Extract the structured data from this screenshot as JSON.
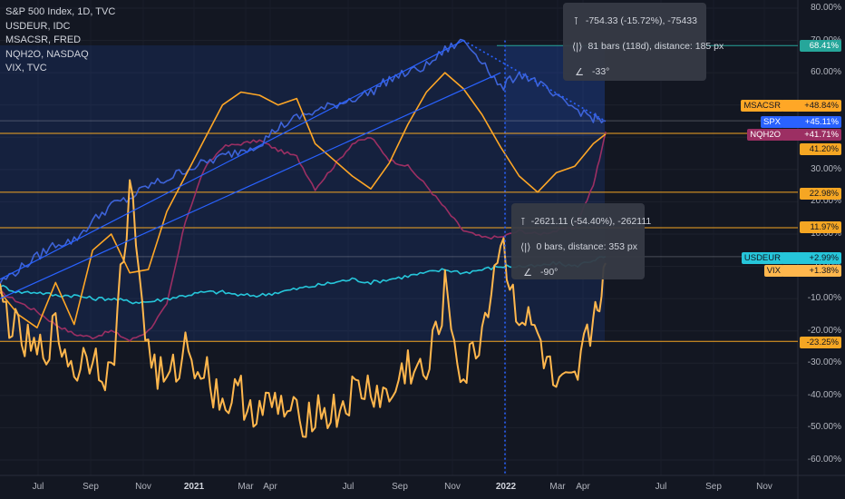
{
  "legend": [
    "S&P 500 Index, 1D, TVC",
    "USDEUR, IDC",
    "MSACSR, FRED",
    "NQH2O, NASDAQ",
    "VIX, TVC"
  ],
  "tooltip1": {
    "row1": "-754.33 (-15.72%), -75433",
    "row2": "81 bars (118d), distance: 185 px",
    "row3": "-33°"
  },
  "tooltip2": {
    "row1": "-2621.11 (-54.40%), -262111",
    "row2": "0 bars, distance: 353 px",
    "row3": "-90°"
  },
  "icons": {
    "range": "range-icon",
    "bars": "bars-icon",
    "angle": "angle-icon"
  },
  "colors": {
    "background": "#131722",
    "spx": "#3d63d8",
    "usdeur": "#26c6da",
    "msacsr": "#ffa726",
    "nqh2o": "#9c2f63",
    "vix": "#ffb74d",
    "hline": "#f5a623",
    "green_hline": "#26a69a"
  },
  "chart_data": {
    "type": "line",
    "x_ticks": [
      "Jul",
      "Sep",
      "Nov",
      "2021",
      "Mar",
      "Apr",
      "Jul",
      "Sep",
      "Nov",
      "2022",
      "Mar",
      "Apr",
      "Jul",
      "Sep",
      "Nov"
    ],
    "x_tick_bold": [
      false,
      false,
      false,
      true,
      false,
      false,
      false,
      false,
      false,
      true,
      false,
      false,
      false,
      false,
      false
    ],
    "y_ticks": [
      "80.00%",
      "70.00%",
      "60.00%",
      "50.00%",
      "40.00%",
      "30.00%",
      "20.00%",
      "10.00%",
      "0.00%",
      "-10.00%",
      "-20.00%",
      "-30.00%",
      "-40.00%",
      "-50.00%",
      "-60.00%"
    ],
    "y_axis": {
      "unit": "percent",
      "range": [
        -63,
        83
      ]
    },
    "series": [
      {
        "name": "SPX",
        "badge": "+45.11%",
        "last": 45.11,
        "points": [
          [
            0,
            -5
          ],
          [
            3,
            -1
          ],
          [
            6,
            3
          ],
          [
            9,
            7
          ],
          [
            12,
            8
          ],
          [
            15,
            14
          ],
          [
            18,
            19
          ],
          [
            21,
            21
          ],
          [
            24,
            25
          ],
          [
            27,
            27
          ],
          [
            30,
            30
          ],
          [
            33,
            32
          ],
          [
            36,
            34
          ],
          [
            39,
            36
          ],
          [
            42,
            38
          ],
          [
            45,
            43
          ],
          [
            48,
            46
          ],
          [
            51,
            48
          ],
          [
            54,
            50
          ],
          [
            57,
            52
          ],
          [
            60,
            54
          ],
          [
            63,
            58
          ],
          [
            66,
            60
          ],
          [
            69,
            62
          ],
          [
            72,
            67
          ],
          [
            75,
            70
          ],
          [
            78,
            64
          ],
          [
            81,
            55
          ],
          [
            84,
            60
          ],
          [
            87,
            57
          ],
          [
            90,
            52
          ],
          [
            93,
            49
          ],
          [
            96,
            46
          ],
          [
            98,
            45
          ]
        ]
      },
      {
        "name": "MSACSR",
        "badge": "+48.84%",
        "last": 48.84,
        "points": [
          [
            0,
            -8
          ],
          [
            3,
            -15
          ],
          [
            6,
            -19
          ],
          [
            9,
            -5
          ],
          [
            12,
            -18
          ],
          [
            15,
            5
          ],
          [
            18,
            10
          ],
          [
            21,
            -2
          ],
          [
            24,
            -1
          ],
          [
            27,
            17
          ],
          [
            30,
            28
          ],
          [
            33,
            39
          ],
          [
            36,
            50
          ],
          [
            39,
            54
          ],
          [
            42,
            53
          ],
          [
            45,
            50
          ],
          [
            48,
            52
          ],
          [
            51,
            38
          ],
          [
            54,
            33
          ],
          [
            57,
            28
          ],
          [
            60,
            24
          ],
          [
            63,
            32
          ],
          [
            66,
            44
          ],
          [
            69,
            54
          ],
          [
            72,
            60
          ],
          [
            75,
            55
          ],
          [
            78,
            47
          ],
          [
            81,
            37
          ],
          [
            84,
            28
          ],
          [
            87,
            23
          ],
          [
            90,
            29
          ],
          [
            93,
            31
          ],
          [
            96,
            38
          ],
          [
            98,
            41
          ]
        ]
      },
      {
        "name": "NQH2O",
        "badge": "+41.71%",
        "last": 41.71,
        "points": [
          [
            0,
            -8
          ],
          [
            3,
            -11
          ],
          [
            6,
            -14
          ],
          [
            9,
            -18
          ],
          [
            12,
            -21
          ],
          [
            15,
            -22
          ],
          [
            18,
            -20
          ],
          [
            21,
            -23
          ],
          [
            24,
            -20
          ],
          [
            27,
            -12
          ],
          [
            30,
            14
          ],
          [
            33,
            30
          ],
          [
            36,
            37
          ],
          [
            39,
            38
          ],
          [
            42,
            39
          ],
          [
            45,
            36
          ],
          [
            48,
            34
          ],
          [
            51,
            24
          ],
          [
            54,
            31
          ],
          [
            57,
            38
          ],
          [
            60,
            40
          ],
          [
            63,
            33
          ],
          [
            66,
            31
          ],
          [
            69,
            25
          ],
          [
            72,
            18
          ],
          [
            75,
            11
          ],
          [
            78,
            9
          ],
          [
            81,
            9
          ],
          [
            84,
            11
          ],
          [
            87,
            10
          ],
          [
            90,
            11
          ],
          [
            93,
            12
          ],
          [
            96,
            25
          ],
          [
            98,
            41.7
          ]
        ]
      },
      {
        "name": "USDEUR",
        "badge": "+2.99%",
        "last": 2.99,
        "points": [
          [
            0,
            -6
          ],
          [
            3,
            -8
          ],
          [
            6,
            -8
          ],
          [
            9,
            -9
          ],
          [
            12,
            -9
          ],
          [
            15,
            -10
          ],
          [
            18,
            -10
          ],
          [
            21,
            -11
          ],
          [
            24,
            -11
          ],
          [
            27,
            -10
          ],
          [
            30,
            -9
          ],
          [
            33,
            -8
          ],
          [
            36,
            -8
          ],
          [
            39,
            -9
          ],
          [
            42,
            -9
          ],
          [
            45,
            -8
          ],
          [
            48,
            -7
          ],
          [
            51,
            -6
          ],
          [
            54,
            -5
          ],
          [
            57,
            -4
          ],
          [
            60,
            -5
          ],
          [
            63,
            -4
          ],
          [
            66,
            -3
          ],
          [
            69,
            -2
          ],
          [
            72,
            -1
          ],
          [
            75,
            -2
          ],
          [
            78,
            -1
          ],
          [
            81,
            0
          ],
          [
            84,
            0
          ],
          [
            87,
            0
          ],
          [
            90,
            1
          ],
          [
            93,
            0
          ],
          [
            96,
            2
          ],
          [
            98,
            3
          ]
        ]
      },
      {
        "name": "VIX",
        "badge": "+1.38%",
        "last": 1.38,
        "points": [
          [
            0,
            -10
          ],
          [
            3,
            -22
          ],
          [
            6,
            -28
          ],
          [
            9,
            -20
          ],
          [
            12,
            -32
          ],
          [
            15,
            -26
          ],
          [
            18,
            -35
          ],
          [
            21,
            25
          ],
          [
            24,
            -27
          ],
          [
            27,
            -38
          ],
          [
            30,
            -25
          ],
          [
            33,
            -32
          ],
          [
            36,
            -42
          ],
          [
            39,
            -40
          ],
          [
            42,
            -45
          ],
          [
            45,
            -43
          ],
          [
            48,
            -48
          ],
          [
            51,
            -44
          ],
          [
            54,
            -46
          ],
          [
            57,
            -40
          ],
          [
            60,
            -38
          ],
          [
            63,
            -42
          ],
          [
            66,
            -30
          ],
          [
            69,
            -35
          ],
          [
            72,
            -8
          ],
          [
            75,
            -36
          ],
          [
            78,
            -20
          ],
          [
            81,
            8
          ],
          [
            84,
            -15
          ],
          [
            87,
            -22
          ],
          [
            90,
            -40
          ],
          [
            93,
            -38
          ],
          [
            96,
            -16
          ],
          [
            98,
            1
          ]
        ]
      }
    ],
    "horizontal_lines": [
      {
        "label": "68.41%",
        "value": 68.41,
        "color": "green"
      },
      {
        "label": "41.20%",
        "value": 41.2,
        "color": "orange"
      },
      {
        "label": "22.98%",
        "value": 22.98,
        "color": "orange"
      },
      {
        "label": "11.97%",
        "value": 11.97,
        "color": "orange"
      },
      {
        "label": "-23.25%",
        "value": -23.25,
        "color": "orange"
      }
    ]
  }
}
